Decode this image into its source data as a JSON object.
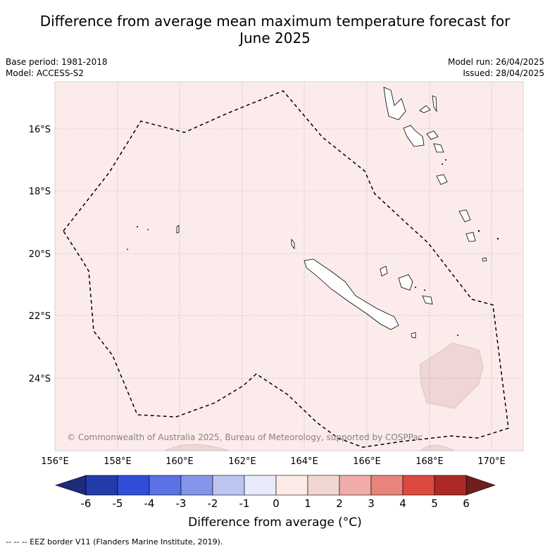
{
  "title_line1": "Difference from average mean maximum temperature forecast for",
  "title_line2": "June 2025",
  "meta": {
    "base_period": "Base period: 1981-2018",
    "model": "Model: ACCESS-S2",
    "model_run": "Model run: 26/04/2025",
    "issued": "Issued: 28/04/2025"
  },
  "copyright": "© Commonwealth of Australia 2025, Bureau of Meteorology, supported by COSPPac",
  "lat_labels": [
    "16°S",
    "18°S",
    "20°S",
    "22°S",
    "24°S"
  ],
  "lon_labels": [
    "156°E",
    "158°E",
    "160°E",
    "162°E",
    "164°E",
    "166°E",
    "168°E",
    "170°E"
  ],
  "colorbar": {
    "ticks": [
      "-6",
      "-5",
      "-4",
      "-3",
      "-2",
      "-1",
      "0",
      "1",
      "2",
      "3",
      "4",
      "5",
      "6"
    ],
    "colors": [
      "#233ba9",
      "#2f4fd9",
      "#5a72e3",
      "#8595ea",
      "#bcc4f2",
      "#e8ecfa",
      "#fdebe7",
      "#f1d6d2",
      "#efaca8",
      "#e8847b",
      "#dc4a3f",
      "#ad2a24"
    ],
    "low_color": "#1c2b7a",
    "high_color": "#6e1e1b",
    "label": "Difference from average (°C)"
  },
  "background_color": "#fbeceb",
  "footer": "--  --  -- EEZ border V11 (Flanders Marine Institute, 2019)."
}
